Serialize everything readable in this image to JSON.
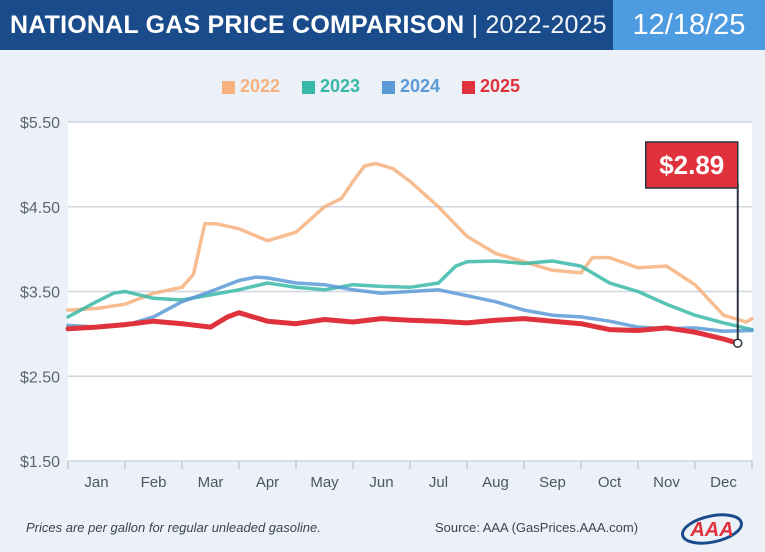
{
  "header": {
    "title_bold": "NATIONAL GAS PRICE COMPARISON",
    "title_sep": " | 2022-2025",
    "date": "12/18/25"
  },
  "callout": {
    "label": "$2.89"
  },
  "footer": {
    "note": "Prices are per gallon for regular unleaded gasoline.",
    "source": "Source: AAA (GasPrices.AAA.com)",
    "logo_text": "AAA"
  },
  "chart_data": {
    "type": "line",
    "title": "NATIONAL GAS PRICE COMPARISON | 2022-2025",
    "x_unit": "month (0 = Jan 1, 12 = Dec 31)",
    "ylim": [
      1.5,
      5.5
    ],
    "yticks": [
      1.5,
      2.5,
      3.5,
      4.5,
      5.5
    ],
    "ytick_labels": [
      "$1.50",
      "$2.50",
      "$3.50",
      "$4.50",
      "$5.50"
    ],
    "categories": [
      "Jan",
      "Feb",
      "Mar",
      "Apr",
      "May",
      "Jun",
      "Jul",
      "Aug",
      "Sep",
      "Oct",
      "Nov",
      "Dec"
    ],
    "grid": true,
    "legend_position": "top-center",
    "series": [
      {
        "name": "2022",
        "color": "#f6b27e",
        "points": [
          [
            0,
            3.28
          ],
          [
            0.5,
            3.3
          ],
          [
            1,
            3.35
          ],
          [
            1.5,
            3.48
          ],
          [
            2,
            3.55
          ],
          [
            2.2,
            3.7
          ],
          [
            2.4,
            4.3
          ],
          [
            2.6,
            4.3
          ],
          [
            3,
            4.24
          ],
          [
            3.5,
            4.1
          ],
          [
            4,
            4.2
          ],
          [
            4.5,
            4.5
          ],
          [
            4.8,
            4.6
          ],
          [
            5.0,
            4.8
          ],
          [
            5.2,
            4.98
          ],
          [
            5.4,
            5.01
          ],
          [
            5.7,
            4.95
          ],
          [
            6,
            4.8
          ],
          [
            6.5,
            4.5
          ],
          [
            7,
            4.15
          ],
          [
            7.5,
            3.95
          ],
          [
            8,
            3.85
          ],
          [
            8.5,
            3.75
          ],
          [
            9,
            3.72
          ],
          [
            9.2,
            3.9
          ],
          [
            9.5,
            3.9
          ],
          [
            10,
            3.78
          ],
          [
            10.5,
            3.8
          ],
          [
            11,
            3.58
          ],
          [
            11.5,
            3.22
          ],
          [
            11.9,
            3.14
          ],
          [
            12,
            3.18
          ]
        ]
      },
      {
        "name": "2023",
        "color": "#38b8a8",
        "points": [
          [
            0,
            3.2
          ],
          [
            0.5,
            3.38
          ],
          [
            0.8,
            3.48
          ],
          [
            1,
            3.5
          ],
          [
            1.5,
            3.42
          ],
          [
            2,
            3.4
          ],
          [
            2.5,
            3.46
          ],
          [
            3,
            3.52
          ],
          [
            3.5,
            3.6
          ],
          [
            4,
            3.55
          ],
          [
            4.5,
            3.52
          ],
          [
            5,
            3.58
          ],
          [
            5.5,
            3.56
          ],
          [
            6,
            3.55
          ],
          [
            6.5,
            3.6
          ],
          [
            6.8,
            3.8
          ],
          [
            7,
            3.85
          ],
          [
            7.5,
            3.86
          ],
          [
            8,
            3.83
          ],
          [
            8.5,
            3.86
          ],
          [
            9,
            3.8
          ],
          [
            9.5,
            3.6
          ],
          [
            10,
            3.5
          ],
          [
            10.5,
            3.35
          ],
          [
            11,
            3.22
          ],
          [
            11.5,
            3.13
          ],
          [
            12,
            3.05
          ]
        ]
      },
      {
        "name": "2024",
        "color": "#5b9ad6",
        "points": [
          [
            0,
            3.1
          ],
          [
            0.5,
            3.08
          ],
          [
            1,
            3.1
          ],
          [
            1.5,
            3.2
          ],
          [
            2,
            3.38
          ],
          [
            2.5,
            3.5
          ],
          [
            3,
            3.63
          ],
          [
            3.3,
            3.67
          ],
          [
            3.5,
            3.66
          ],
          [
            4,
            3.6
          ],
          [
            4.5,
            3.58
          ],
          [
            5,
            3.52
          ],
          [
            5.5,
            3.48
          ],
          [
            6,
            3.5
          ],
          [
            6.5,
            3.52
          ],
          [
            7,
            3.45
          ],
          [
            7.5,
            3.38
          ],
          [
            8,
            3.28
          ],
          [
            8.5,
            3.22
          ],
          [
            9,
            3.2
          ],
          [
            9.5,
            3.15
          ],
          [
            10,
            3.08
          ],
          [
            10.5,
            3.06
          ],
          [
            11,
            3.07
          ],
          [
            11.5,
            3.03
          ],
          [
            12,
            3.04
          ]
        ]
      },
      {
        "name": "2025",
        "color": "#e0323d",
        "points": [
          [
            0,
            3.06
          ],
          [
            0.5,
            3.08
          ],
          [
            1,
            3.11
          ],
          [
            1.5,
            3.15
          ],
          [
            2,
            3.12
          ],
          [
            2.5,
            3.08
          ],
          [
            2.8,
            3.2
          ],
          [
            3,
            3.25
          ],
          [
            3.5,
            3.15
          ],
          [
            4,
            3.12
          ],
          [
            4.5,
            3.17
          ],
          [
            5,
            3.14
          ],
          [
            5.5,
            3.18
          ],
          [
            6,
            3.16
          ],
          [
            6.5,
            3.15
          ],
          [
            7,
            3.13
          ],
          [
            7.5,
            3.16
          ],
          [
            8,
            3.18
          ],
          [
            8.5,
            3.15
          ],
          [
            9,
            3.12
          ],
          [
            9.5,
            3.05
          ],
          [
            10,
            3.04
          ],
          [
            10.5,
            3.07
          ],
          [
            11,
            3.02
          ],
          [
            11.5,
            2.94
          ],
          [
            11.75,
            2.89
          ]
        ]
      }
    ],
    "annotations": [
      {
        "text": "$2.89",
        "x": 11.75,
        "y": 2.89
      }
    ]
  }
}
